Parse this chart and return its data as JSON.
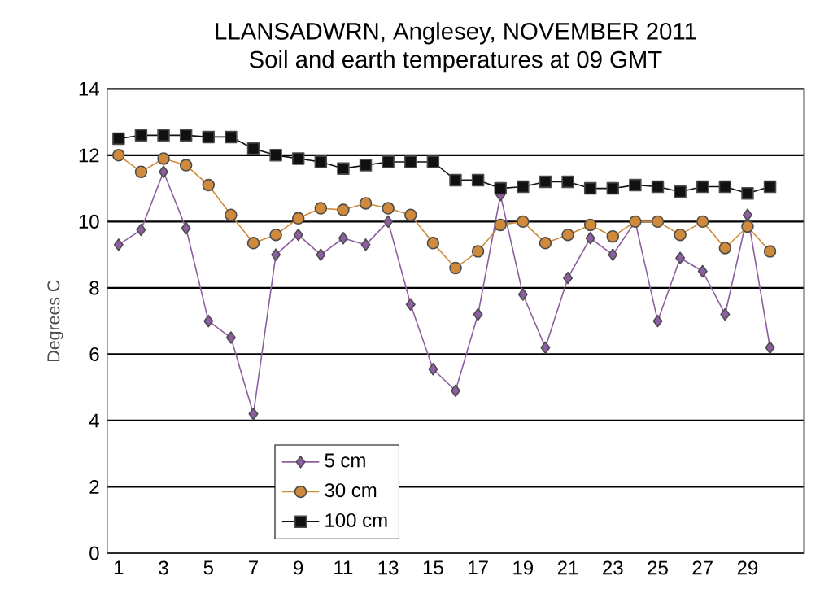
{
  "chart_data": {
    "type": "line",
    "title": "LLANSADWRN, Anglesey, NOVEMBER 2011",
    "subtitle": "Soil and earth temperatures at 09 GMT",
    "ylabel": "Degrees C",
    "x": [
      1,
      2,
      3,
      4,
      5,
      6,
      7,
      8,
      9,
      10,
      11,
      12,
      13,
      14,
      15,
      16,
      17,
      18,
      19,
      20,
      21,
      22,
      23,
      24,
      25,
      26,
      27,
      28,
      29,
      30
    ],
    "xlim": [
      0.5,
      31.5
    ],
    "xticks": [
      1,
      3,
      5,
      7,
      9,
      11,
      13,
      15,
      17,
      19,
      21,
      23,
      25,
      27,
      29
    ],
    "ylim": [
      0,
      14
    ],
    "yticks": [
      0,
      2,
      4,
      6,
      8,
      10,
      12,
      14
    ],
    "grid": "y",
    "legend": "bottom left",
    "series": [
      {
        "name": "5 cm",
        "color": "#8e5ea2",
        "marker": "diamond",
        "values": [
          9.3,
          9.75,
          11.5,
          9.8,
          7.0,
          6.5,
          4.2,
          9.0,
          9.6,
          9.0,
          9.5,
          9.3,
          10.0,
          7.5,
          5.55,
          4.9,
          7.2,
          10.8,
          7.8,
          6.2,
          8.3,
          9.5,
          9.0,
          10.0,
          7.0,
          8.9,
          8.5,
          7.2,
          10.2,
          6.2
        ]
      },
      {
        "name": "30 cm",
        "color": "#d08a3c",
        "marker": "circle",
        "values": [
          12.0,
          11.5,
          11.9,
          11.7,
          11.1,
          10.2,
          9.35,
          9.6,
          10.1,
          10.4,
          10.35,
          10.55,
          10.4,
          10.2,
          9.35,
          8.6,
          9.1,
          9.9,
          10.0,
          9.35,
          9.6,
          9.9,
          9.55,
          10.0,
          10.0,
          9.6,
          10.0,
          9.2,
          9.85,
          9.1
        ]
      },
      {
        "name": "100 cm",
        "color": "#111111",
        "marker": "square",
        "values": [
          12.5,
          12.6,
          12.6,
          12.6,
          12.55,
          12.55,
          12.2,
          12.0,
          11.9,
          11.8,
          11.6,
          11.7,
          11.8,
          11.8,
          11.8,
          11.25,
          11.25,
          11.0,
          11.05,
          11.2,
          11.2,
          11.0,
          11.0,
          11.1,
          11.05,
          10.9,
          11.05,
          11.05,
          10.85,
          11.05
        ]
      }
    ]
  }
}
